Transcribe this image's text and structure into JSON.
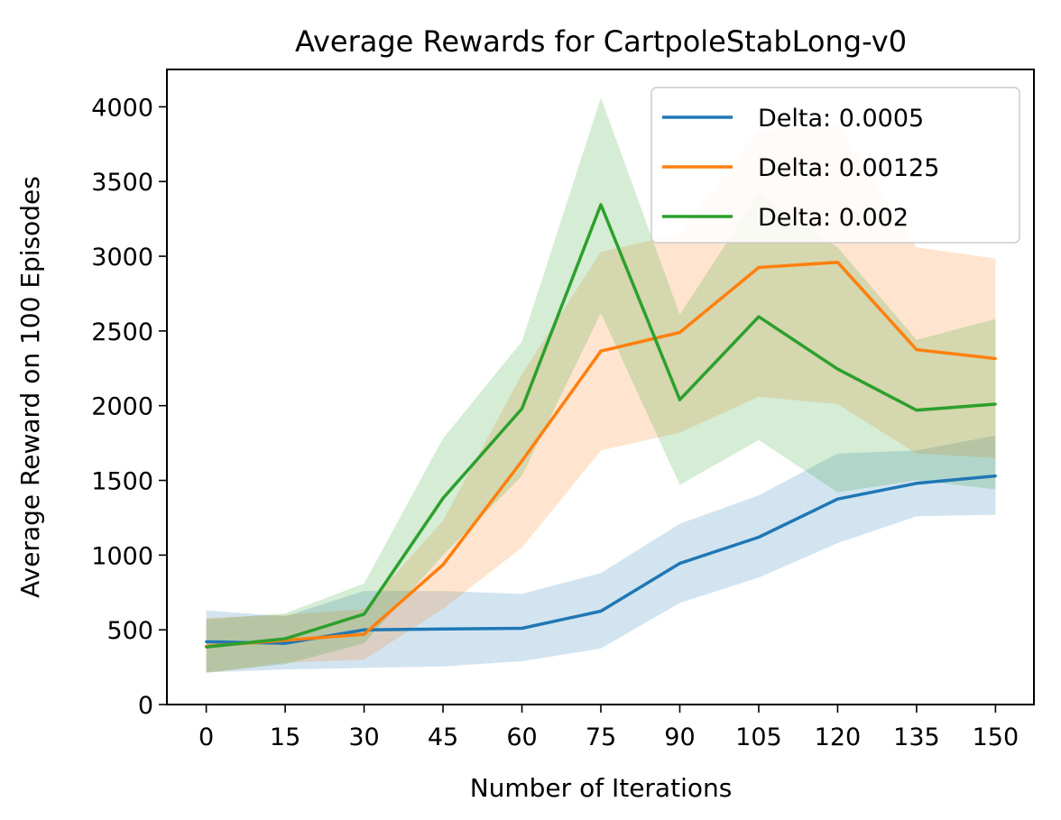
{
  "chart_data": {
    "type": "line",
    "title": "Average Rewards for CartpoleStabLong-v0",
    "xlabel": "Number of Iterations",
    "ylabel": "Average Reward on 100 Episodes",
    "x": [
      0,
      15,
      30,
      45,
      60,
      75,
      90,
      105,
      120,
      135,
      150
    ],
    "x_tick_labels": [
      "0",
      "15",
      "30",
      "45",
      "60",
      "75",
      "90",
      "105",
      "120",
      "135",
      "150"
    ],
    "ylim": [
      0,
      4250
    ],
    "y_ticks": [
      0,
      500,
      1000,
      1500,
      2000,
      2500,
      3000,
      3500,
      4000
    ],
    "y_tick_labels": [
      "0",
      "500",
      "1000",
      "1500",
      "2000",
      "2500",
      "3000",
      "3500",
      "4000"
    ],
    "grid": false,
    "legend_position": "top-right",
    "series": [
      {
        "name": "Delta: 0.0005",
        "color": "#1f77b4",
        "values": [
          420,
          410,
          500,
          505,
          510,
          625,
          945,
          1120,
          1375,
          1480,
          1530
        ],
        "lower": [
          215,
          235,
          245,
          255,
          290,
          375,
          680,
          850,
          1080,
          1260,
          1270
        ],
        "upper": [
          630,
          590,
          760,
          760,
          740,
          880,
          1210,
          1400,
          1680,
          1700,
          1800
        ]
      },
      {
        "name": "Delta: 0.00125",
        "color": "#ff7f0e",
        "values": [
          390,
          430,
          470,
          935,
          1630,
          2365,
          2490,
          2925,
          2960,
          2375,
          2315
        ],
        "lower": [
          210,
          280,
          300,
          640,
          1050,
          1700,
          1820,
          2060,
          2010,
          1680,
          1650
        ],
        "upper": [
          580,
          600,
          640,
          1230,
          2210,
          3030,
          3150,
          3840,
          3880,
          3060,
          2985
        ]
      },
      {
        "name": "Delta: 0.002",
        "color": "#2ca02c",
        "values": [
          385,
          440,
          605,
          1380,
          1980,
          3345,
          2040,
          2595,
          2245,
          1970,
          2010
        ],
        "lower": [
          215,
          270,
          410,
          1000,
          1530,
          2620,
          1470,
          1770,
          1420,
          1500,
          1440
        ],
        "upper": [
          570,
          610,
          810,
          1780,
          2430,
          4060,
          2610,
          3420,
          3060,
          2440,
          2580
        ]
      }
    ]
  }
}
